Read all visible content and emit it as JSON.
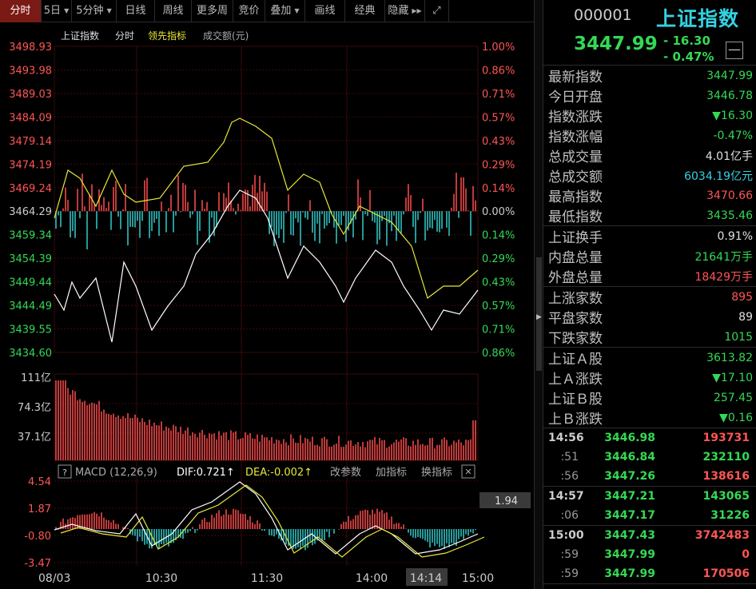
{
  "toolbar": {
    "items": [
      "分时",
      "5日",
      "5分钟",
      "日线",
      "周线",
      "更多周",
      "竞价",
      "叠加",
      "画线",
      "经典",
      "隐藏"
    ]
  },
  "chart": {
    "legend": {
      "name": "上证指数",
      "mode": "分时",
      "leading": "领先指标",
      "volume": "成交额(元)"
    },
    "price_ticks": [
      "3498.93",
      "3493.98",
      "3489.03",
      "3484.09",
      "3479.14",
      "3474.19",
      "3469.24",
      "3464.29",
      "3459.34",
      "3454.39",
      "3449.44",
      "3444.49",
      "3439.55",
      "3434.60"
    ],
    "pct_ticks": [
      "1.00%",
      "0.86%",
      "0.71%",
      "0.57%",
      "0.43%",
      "0.29%",
      "0.14%",
      "0.00%",
      "0.14%",
      "0.29%",
      "0.43%",
      "0.57%",
      "0.71%",
      "0.86%"
    ],
    "volume_ticks": [
      "111亿",
      "74.3亿",
      "37.1亿"
    ],
    "macd": {
      "question": "?",
      "title": "MACD (12,26,9)",
      "dif": "DIF:0.721↑",
      "dea": "DEA:-0.002↑",
      "btn_params": "改参数",
      "btn_add": "加指标",
      "btn_switch": "换指标",
      "close": "✕",
      "ticks": [
        "4.54",
        "1.87",
        "-0.80",
        "-3.47"
      ],
      "right_value": "1.94"
    },
    "time_ticks": [
      "08/03",
      "10:30",
      "11:30",
      "14:00",
      "14:14",
      "15:00"
    ],
    "colors": {
      "price_line": "#ffffff",
      "leading_line": "#e8e83a",
      "up": "#ff4d4d",
      "down": "#33cccc",
      "vol": "#ff4d4d",
      "grid": "#3a0a0a"
    }
  },
  "quote": {
    "code": "000001",
    "name": "上证指数",
    "price": "3447.99",
    "change": "- 16.30",
    "change_pct": "- 0.47%",
    "minus": "—"
  },
  "stats": [
    [
      {
        "label": "最新指数",
        "value": "3447.99",
        "color": "#33d955"
      },
      {
        "label": "今日开盘",
        "value": "3446.78",
        "color": "#33d955"
      },
      {
        "label": "指数涨跌",
        "value": "▼16.30",
        "color": "#33d955"
      },
      {
        "label": "指数涨幅",
        "value": "-0.47%",
        "color": "#33d955"
      },
      {
        "label": "总成交量",
        "value": "4.01亿手",
        "color": "#e0e0e0"
      },
      {
        "label": "总成交额",
        "value": "6034.19亿元",
        "color": "#33d3e3"
      },
      {
        "label": "最高指数",
        "value": "3470.66",
        "color": "#ff5555"
      },
      {
        "label": "最低指数",
        "value": "3435.46",
        "color": "#33d955"
      }
    ],
    [
      {
        "label": "上证换手",
        "value": "0.91%",
        "color": "#e0e0e0"
      },
      {
        "label": "内盘总量",
        "value": "21641万手",
        "color": "#33d955"
      },
      {
        "label": "外盘总量",
        "value": "18429万手",
        "color": "#ff5555"
      }
    ],
    [
      {
        "label": "上涨家数",
        "value": "895",
        "color": "#ff5555"
      },
      {
        "label": "平盘家数",
        "value": "89",
        "color": "#e0e0e0"
      },
      {
        "label": "下跌家数",
        "value": "1015",
        "color": "#33d955"
      }
    ],
    [
      {
        "label": "上证Ａ股",
        "value": "3613.82",
        "color": "#33d955"
      },
      {
        "label": "上Ａ涨跌",
        "value": "▼17.10",
        "color": "#33d955"
      },
      {
        "label": "上证Ｂ股",
        "value": "257.45",
        "color": "#33d955"
      },
      {
        "label": "上Ｂ涨跌",
        "value": "▼0.16",
        "color": "#33d955"
      }
    ]
  ],
  "ticks": [
    [
      {
        "time": "14:56",
        "price": "3446.98",
        "vol": "193731",
        "vcolor": "#ff5555"
      },
      {
        "time": ":51",
        "price": "3446.84",
        "vol": "232110",
        "vcolor": "#33d955"
      },
      {
        "time": ":56",
        "price": "3447.26",
        "vol": "138616",
        "vcolor": "#ff5555"
      }
    ],
    [
      {
        "time": "14:57",
        "price": "3447.21",
        "vol": "143065",
        "vcolor": "#33d955"
      },
      {
        "time": ":06",
        "price": "3447.17",
        "vol": "31226",
        "vcolor": "#33d955"
      }
    ],
    [
      {
        "time": "15:00",
        "price": "3447.43",
        "vol": "3742483",
        "vcolor": "#ff5555"
      },
      {
        "time": ":59",
        "price": "3447.99",
        "vol": "0",
        "vcolor": "#ff5555"
      },
      {
        "time": ":59",
        "price": "3447.99",
        "vol": "170506",
        "vcolor": "#ff5555"
      }
    ]
  ]
}
